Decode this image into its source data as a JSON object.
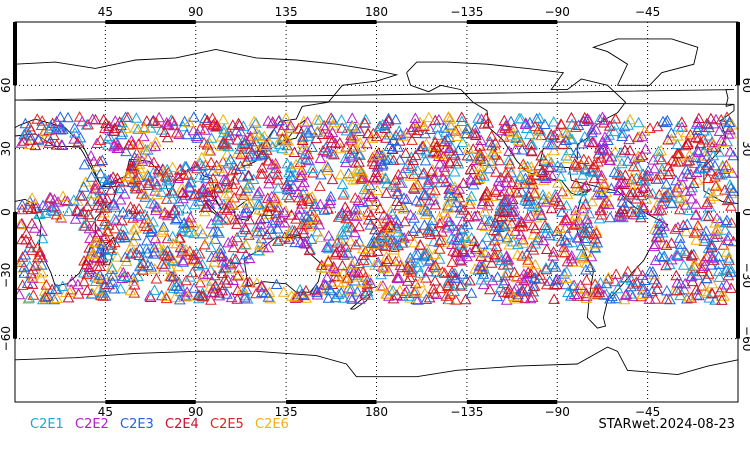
{
  "map": {
    "projection": "cylindrical-equidistant",
    "lon_range": [
      0,
      360
    ],
    "lat_range": [
      -90,
      90
    ],
    "meridian_ticks": [
      {
        "lon": 45,
        "label": "45"
      },
      {
        "lon": 90,
        "label": "90"
      },
      {
        "lon": 135,
        "label": "135"
      },
      {
        "lon": 180,
        "label": "180"
      },
      {
        "lon": 225,
        "label": "−135"
      },
      {
        "lon": 270,
        "label": "−90"
      },
      {
        "lon": 315,
        "label": "−45"
      }
    ],
    "parallel_ticks": [
      {
        "lat": 60,
        "label": "60"
      },
      {
        "lat": 30,
        "label": "30"
      },
      {
        "lat": 0,
        "label": "0"
      },
      {
        "lat": -30,
        "label": "−30"
      },
      {
        "lat": -60,
        "label": "−60"
      }
    ],
    "grid": "dotted",
    "marker": "open-triangle",
    "observation_lat_band": [
      -42,
      45
    ]
  },
  "legend": [
    {
      "label": "C2E1",
      "color": "#1aa6d9"
    },
    {
      "label": "C2E2",
      "color": "#b31ec9"
    },
    {
      "label": "C2E3",
      "color": "#1f64e0"
    },
    {
      "label": "C2E4",
      "color": "#c8102e"
    },
    {
      "label": "C2E5",
      "color": "#e0201b"
    },
    {
      "label": "C2E6",
      "color": "#f2b10c"
    }
  ],
  "footer": {
    "label": "STARwet.2024-08-23"
  }
}
